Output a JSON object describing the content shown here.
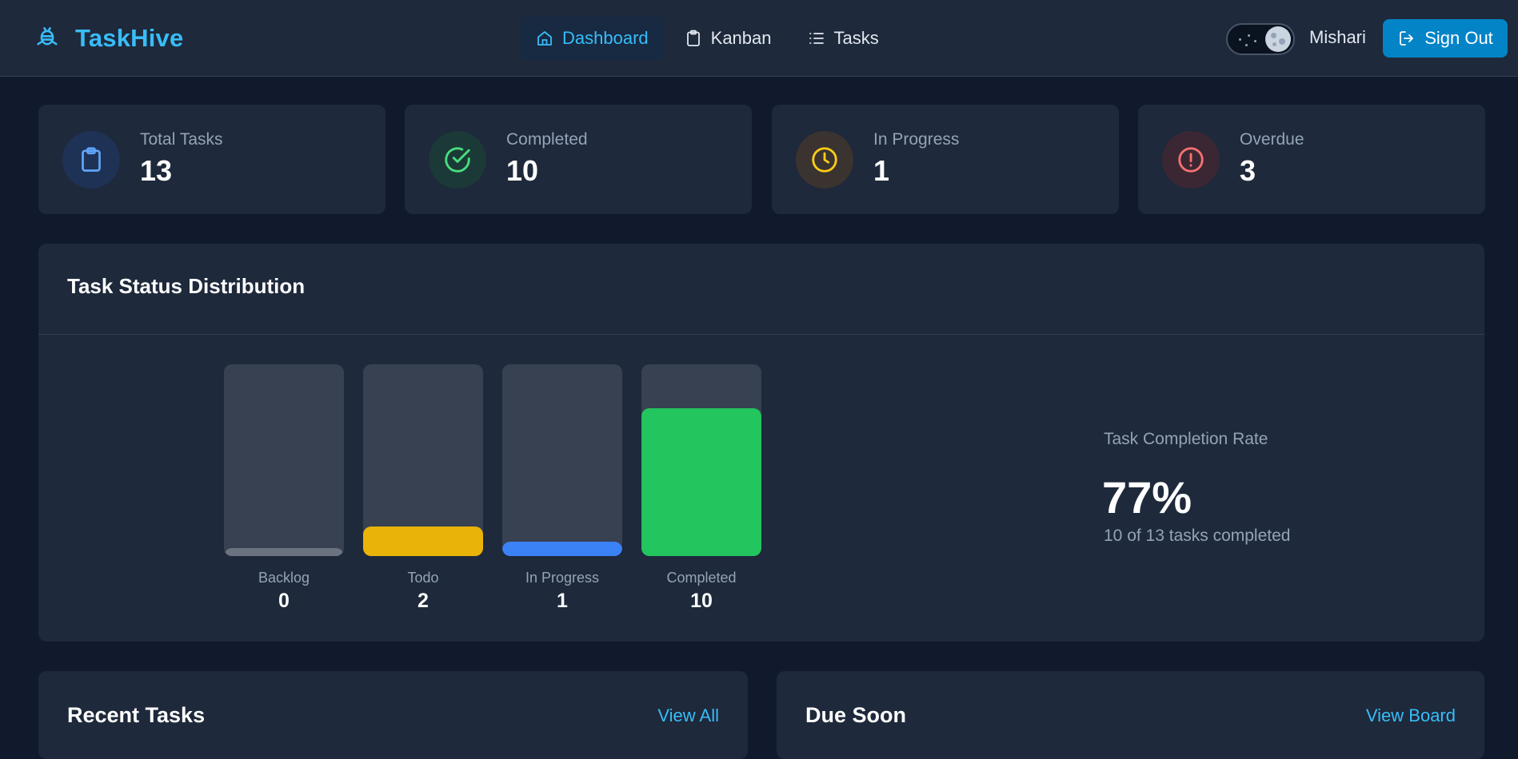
{
  "header": {
    "brand": "TaskHive",
    "nav": [
      {
        "label": "Dashboard",
        "icon": "home-icon",
        "active": true
      },
      {
        "label": "Kanban",
        "icon": "clipboard-icon",
        "active": false
      },
      {
        "label": "Tasks",
        "icon": "list-icon",
        "active": false
      }
    ],
    "user_name": "Mishari",
    "signout_label": "Sign Out"
  },
  "stats": [
    {
      "label": "Total Tasks",
      "value": "13",
      "icon": "clipboard-icon",
      "color": "#60a5fa",
      "bg": "#1e3256"
    },
    {
      "label": "Completed",
      "value": "10",
      "icon": "check-circle-icon",
      "color": "#4ade80",
      "bg": "#1b3a37"
    },
    {
      "label": "In Progress",
      "value": "1",
      "icon": "clock-icon",
      "color": "#facc15",
      "bg": "#3a3330"
    },
    {
      "label": "Overdue",
      "value": "3",
      "icon": "alert-circle-icon",
      "color": "#f87171",
      "bg": "#3b2733"
    }
  ],
  "distribution": {
    "title": "Task Status Distribution",
    "chart_data": {
      "type": "bar",
      "categories": [
        "Backlog",
        "Todo",
        "In Progress",
        "Completed"
      ],
      "values": [
        0,
        2,
        1,
        10
      ],
      "colors": [
        "#6b7280",
        "#eab308",
        "#3b82f6",
        "#22c55e"
      ],
      "ylim": [
        0,
        13
      ]
    },
    "rate_label": "Task Completion Rate",
    "rate_value": "77%",
    "rate_sub": "10 of 13 tasks completed"
  },
  "recent": {
    "title": "Recent Tasks",
    "link": "View All"
  },
  "due": {
    "title": "Due Soon",
    "link": "View Board"
  },
  "colors": {
    "accent": "#38bdf8",
    "primary_button": "#0284c7",
    "card": "#1e293b",
    "page": "#111a2c"
  }
}
